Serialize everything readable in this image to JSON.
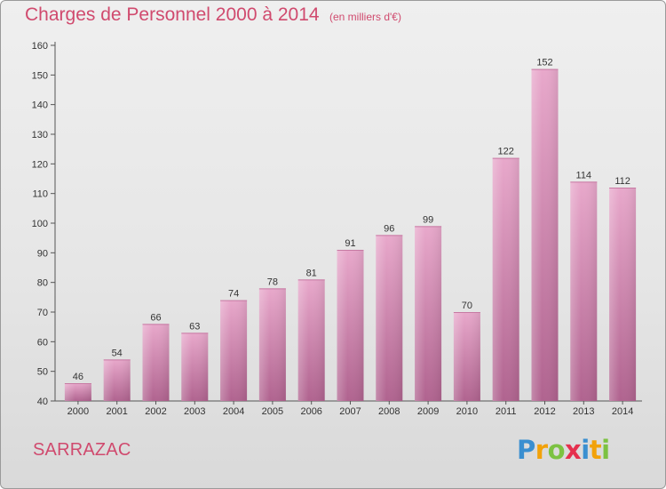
{
  "header": {
    "title": "Charges de Personnel 2000 à 2014",
    "subtitle": "(en milliers d'€)"
  },
  "footer": {
    "place": "SARRAZAC",
    "logo_letters": [
      "P",
      "r",
      "o",
      "x",
      "i",
      "t",
      "i"
    ],
    "logo_colors": [
      "#3a8fd0",
      "#f2a20a",
      "#7cc242",
      "#e5304e",
      "#3a8fd0",
      "#f2a20a",
      "#7cc242"
    ]
  },
  "colors": {
    "bar_top": "#e8a8cb",
    "bar_bottom": "#b0638f",
    "accent_text": "#d04a6e"
  },
  "chart_data": {
    "type": "bar",
    "title": "Charges de Personnel 2000 à 2014",
    "subtitle": "(en milliers d'€)",
    "categories": [
      "2000",
      "2001",
      "2002",
      "2003",
      "2004",
      "2005",
      "2006",
      "2007",
      "2008",
      "2009",
      "2010",
      "2011",
      "2012",
      "2013",
      "2014"
    ],
    "values": [
      46,
      54,
      66,
      63,
      74,
      78,
      81,
      91,
      96,
      99,
      70,
      122,
      152,
      114,
      112
    ],
    "ylim": [
      40,
      160
    ],
    "yticks": [
      40,
      50,
      60,
      70,
      80,
      90,
      100,
      110,
      120,
      130,
      140,
      150,
      160
    ],
    "grid": false,
    "data_labels": true
  }
}
